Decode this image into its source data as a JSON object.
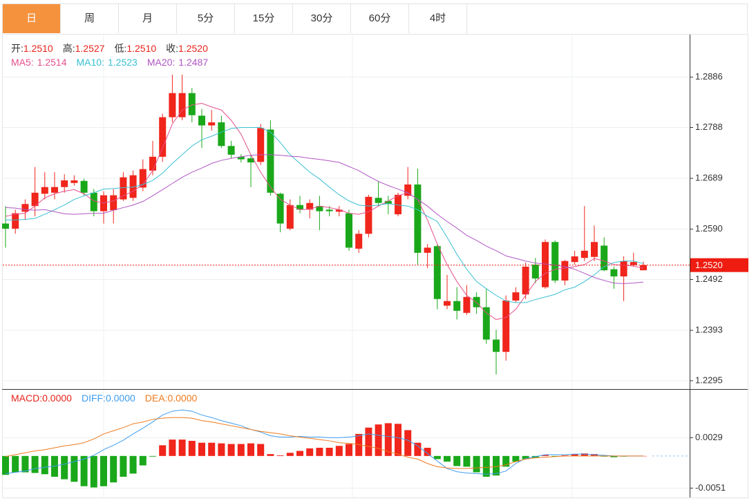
{
  "tabs": [
    "日",
    "周",
    "月",
    "5分",
    "15分",
    "30分",
    "60分",
    "4时"
  ],
  "active_tab": 0,
  "chart_data": [
    {
      "type": "candlestick",
      "info": [
        {
          "label": "开:",
          "value": "1.2510"
        },
        {
          "label": "高:",
          "value": "1.2527"
        },
        {
          "label": "低:",
          "value": "1.2510"
        },
        {
          "label": "收:",
          "value": "1.2520"
        }
      ],
      "info_color": "#e8231b",
      "up_color": "#f0251b",
      "down_color": "#1aa81a",
      "open": [
        1.2601,
        1.2591,
        1.2624,
        1.2635,
        1.2659,
        1.2661,
        1.2672,
        1.268,
        1.2684,
        1.2661,
        1.2625,
        1.2627,
        1.2648,
        1.2651,
        1.2671,
        1.2704,
        1.2731,
        1.2808,
        1.2808,
        1.2855,
        1.2811,
        1.2792,
        1.2798,
        1.2752,
        1.2731,
        1.2728,
        1.2721,
        1.2784,
        1.2659,
        1.2591,
        1.2637,
        1.2628,
        1.2635,
        1.2628,
        1.2624,
        1.2621,
        1.2552,
        1.2581,
        1.2651,
        1.2645,
        1.2619,
        1.2655,
        1.2677,
        1.2544,
        1.2557,
        1.2441,
        1.245,
        1.2427,
        1.2458,
        1.2438,
        1.2375,
        1.2351,
        1.2451,
        1.2463,
        1.2521,
        1.2477,
        1.2565,
        1.249,
        1.2526,
        1.2534,
        1.2536,
        1.2558,
        1.2512,
        1.2498,
        1.252,
        1.251
      ],
      "high": [
        1.2635,
        1.2628,
        1.2648,
        1.2711,
        1.2701,
        1.2701,
        1.2697,
        1.2695,
        1.2688,
        1.2668,
        1.2664,
        1.2668,
        1.2701,
        1.2704,
        1.2726,
        1.2762,
        1.2815,
        1.2891,
        1.2891,
        1.2865,
        1.2824,
        1.2822,
        1.2811,
        1.2762,
        1.2736,
        1.2734,
        1.2795,
        1.2802,
        1.2661,
        1.2648,
        1.2655,
        1.2648,
        1.2655,
        1.2635,
        1.2635,
        1.2628,
        1.2588,
        1.2657,
        1.2684,
        1.2655,
        1.2661,
        1.2711,
        1.2708,
        1.2561,
        1.2561,
        1.2501,
        1.2477,
        1.2481,
        1.2467,
        1.2474,
        1.2394,
        1.2461,
        1.2477,
        1.2525,
        1.2534,
        1.257,
        1.2568,
        1.253,
        1.2548,
        1.2635,
        1.2597,
        1.2574,
        1.2517,
        1.2537,
        1.2544,
        1.2527
      ],
      "low": [
        1.2554,
        1.2581,
        1.2608,
        1.2615,
        1.2648,
        1.2648,
        1.2661,
        1.2675,
        1.2655,
        1.2615,
        1.2601,
        1.2601,
        1.2645,
        1.2645,
        1.2664,
        1.2695,
        1.2721,
        1.2798,
        1.2802,
        1.2798,
        1.2748,
        1.2782,
        1.2748,
        1.2728,
        1.272,
        1.2672,
        1.2715,
        1.2655,
        1.2584,
        1.2588,
        1.2621,
        1.2611,
        1.2588,
        1.2615,
        1.2615,
        1.2548,
        1.2544,
        1.2574,
        1.2635,
        1.2619,
        1.2615,
        1.2648,
        1.2521,
        1.2514,
        1.2434,
        1.2434,
        1.2414,
        1.2423,
        1.2425,
        1.2367,
        1.2307,
        1.2334,
        1.2447,
        1.2454,
        1.2485,
        1.2474,
        1.2485,
        1.2481,
        1.2521,
        1.2528,
        1.2528,
        1.2508,
        1.2474,
        1.245,
        1.2517,
        1.251
      ],
      "close": [
        1.2591,
        1.2621,
        1.2639,
        1.2661,
        1.2672,
        1.2672,
        1.2685,
        1.2685,
        1.2661,
        1.2625,
        1.2656,
        1.2656,
        1.2691,
        1.2695,
        1.2707,
        1.2731,
        1.2808,
        1.2855,
        1.2855,
        1.2812,
        1.2792,
        1.2798,
        1.2752,
        1.2735,
        1.2726,
        1.272,
        1.2787,
        1.2661,
        1.2601,
        1.2637,
        1.2628,
        1.2641,
        1.2625,
        1.2625,
        1.2628,
        1.2554,
        1.2581,
        1.2653,
        1.2641,
        1.2639,
        1.2657,
        1.2677,
        1.2544,
        1.2554,
        1.2454,
        1.245,
        1.2431,
        1.2458,
        1.2438,
        1.2375,
        1.2351,
        1.2451,
        1.2467,
        1.2517,
        1.2494,
        1.2565,
        1.249,
        1.2528,
        1.2537,
        1.2548,
        1.2565,
        1.251,
        1.2498,
        1.2528,
        1.2526,
        1.252
      ],
      "series": [
        {
          "name": "MA5:",
          "last": "1.2514",
          "color": "#e5508c",
          "values": [
            1.2615,
            1.2619,
            1.2621,
            1.2635,
            1.2651,
            1.2659,
            1.2664,
            1.2667,
            1.2659,
            1.2645,
            1.2641,
            1.2645,
            1.2655,
            1.2664,
            1.2677,
            1.2704,
            1.2748,
            1.2795,
            1.2822,
            1.2832,
            1.2835,
            1.2828,
            1.2822,
            1.2802,
            1.2775,
            1.2735,
            1.2701,
            1.2672,
            1.2648,
            1.2637,
            1.2628,
            1.2629,
            1.2635,
            1.2632,
            1.2628,
            1.2621,
            1.2619,
            1.2624,
            1.2635,
            1.2645,
            1.2655,
            1.2661,
            1.2648,
            1.2608,
            1.2561,
            1.2521,
            1.2488,
            1.2461,
            1.2447,
            1.2427,
            1.2414,
            1.2418,
            1.2434,
            1.2461,
            1.2488,
            1.2504,
            1.2512,
            1.2514,
            1.2517,
            1.2521,
            1.2533,
            1.2528,
            1.2521,
            1.252,
            1.2518,
            1.2514
          ]
        },
        {
          "name": "MA10:",
          "last": "1.2523",
          "color": "#37bfd2",
          "values": [
            1.2608,
            1.2608,
            1.2609,
            1.2611,
            1.2619,
            1.2628,
            1.2637,
            1.2648,
            1.2655,
            1.2661,
            1.2668,
            1.2669,
            1.2671,
            1.2672,
            1.2677,
            1.2685,
            1.2699,
            1.2718,
            1.2735,
            1.2752,
            1.2764,
            1.2771,
            1.2779,
            1.2786,
            1.2788,
            1.2788,
            1.2788,
            1.2779,
            1.2759,
            1.2735,
            1.2718,
            1.2701,
            1.2688,
            1.2672,
            1.2657,
            1.2645,
            1.2637,
            1.2635,
            1.2637,
            1.264,
            1.2637,
            1.2635,
            1.2628,
            1.2615,
            1.2605,
            1.2574,
            1.2541,
            1.2512,
            1.2488,
            1.2474,
            1.2461,
            1.245,
            1.2447,
            1.2447,
            1.2453,
            1.2458,
            1.2463,
            1.2472,
            1.2477,
            1.2488,
            1.2501,
            1.2517,
            1.2525,
            1.2528,
            1.2528,
            1.2523
          ]
        },
        {
          "name": "MA20:",
          "last": "1.2487",
          "color": "#b055c4",
          "values": [
            1.2632,
            1.2631,
            1.2628,
            1.2627,
            1.2628,
            1.2624,
            1.262,
            1.2619,
            1.262,
            1.2621,
            1.2621,
            1.2627,
            1.2632,
            1.2637,
            1.2644,
            1.2655,
            1.2667,
            1.2679,
            1.2691,
            1.2701,
            1.2709,
            1.2718,
            1.2724,
            1.2728,
            1.2731,
            1.2734,
            1.2735,
            1.2735,
            1.2734,
            1.2732,
            1.2731,
            1.2728,
            1.2726,
            1.2723,
            1.272,
            1.2712,
            1.2704,
            1.2693,
            1.2683,
            1.2675,
            1.2668,
            1.2661,
            1.2648,
            1.2635,
            1.2619,
            1.2605,
            1.2592,
            1.2578,
            1.2568,
            1.2557,
            1.2548,
            1.2538,
            1.2533,
            1.2528,
            1.2524,
            1.2522,
            1.252,
            1.2517,
            1.2512,
            1.2504,
            1.2496,
            1.249,
            1.2485,
            1.2484,
            1.2485,
            1.2487
          ]
        }
      ],
      "last_price": {
        "value": 1.252,
        "label": "1.2520"
      },
      "last_price_color": "#ee1c11",
      "ylim": [
        1.228,
        1.2969
      ],
      "yticks": [
        1.2886,
        1.2788,
        1.2689,
        {
          "value": 1.259,
          "label": "1.2590"
        },
        1.2492,
        1.2393,
        1.2295
      ],
      "grid": true
    },
    {
      "type": "macd",
      "up_color": "#f0251b",
      "down_color": "#1aa81a",
      "series": [
        {
          "name": "MACD:",
          "last": "0.0000",
          "color": "#e8231b",
          "values": [
            -0.003,
            -0.0026,
            -0.0026,
            -0.0027,
            -0.0029,
            -0.0033,
            -0.0037,
            -0.0041,
            -0.0048,
            -0.005,
            -0.0048,
            -0.0042,
            -0.0033,
            -0.0028,
            -0.0015,
            -0.0001,
            0.0017,
            0.0026,
            0.0026,
            0.0024,
            0.0021,
            0.0021,
            0.002,
            0.0019,
            0.0019,
            0.002,
            0.0019,
            0.0003,
            0.0001,
            0.0005,
            0.0008,
            0.0012,
            0.0013,
            0.0013,
            0.0016,
            0.0019,
            0.0035,
            0.0045,
            0.005,
            0.0052,
            0.0051,
            0.0041,
            0.0021,
            0.0013,
            -0.0005,
            -0.0009,
            -0.0016,
            -0.0017,
            -0.0026,
            -0.0033,
            -0.0031,
            -0.0017,
            -0.0009,
            -0.0005,
            -0.0003,
            0.0002,
            -0.0001,
            0.0001,
            0.0003,
            0.0004,
            0.0003,
            -0.0001,
            -0.0002,
            -0.0001,
            0,
            0
          ]
        },
        {
          "name": "DIFF:",
          "last": "0.0000",
          "color": "#3d9cf0",
          "values": [
            -0.0028,
            -0.0026,
            -0.0024,
            -0.002,
            -0.0018,
            -0.0016,
            -0.0013,
            -0.0009,
            -0.0005,
            0.0001,
            0.001,
            0.0017,
            0.0025,
            0.0035,
            0.0044,
            0.0054,
            0.0065,
            0.0071,
            0.0073,
            0.0071,
            0.0065,
            0.0061,
            0.0056,
            0.0052,
            0.0048,
            0.0042,
            0.0038,
            0.0032,
            0.003,
            0.003,
            0.0031,
            0.003,
            0.003,
            0.0029,
            0.0029,
            0.003,
            0.0032,
            0.0035,
            0.0033,
            0.0031,
            0.0029,
            0.0025,
            0.0016,
            0.0004,
            -0.0008,
            -0.002,
            -0.0025,
            -0.0027,
            -0.0028,
            -0.0029,
            -0.0028,
            -0.0024,
            -0.0012,
            -0.0004,
            -0.0001,
            0.0002,
            0.0002,
            0.0002,
            0.0003,
            0.0003,
            0.0002,
            0.0001,
            0,
            0,
            0,
            0
          ]
        },
        {
          "name": "DEA:",
          "last": "0.0000",
          "color": "#f07a1c",
          "values": [
            -0.0001,
            0.0002,
            0.0005,
            0.0008,
            0.001,
            0.0013,
            0.0016,
            0.0018,
            0.0021,
            0.0027,
            0.0035,
            0.004,
            0.0045,
            0.0051,
            0.0054,
            0.0058,
            0.006,
            0.0061,
            0.0061,
            0.006,
            0.0056,
            0.0054,
            0.0051,
            0.0048,
            0.0045,
            0.0042,
            0.0039,
            0.0037,
            0.0035,
            0.0032,
            0.003,
            0.0028,
            0.0026,
            0.0024,
            0.0021,
            0.002,
            0.0018,
            0.0015,
            0.0012,
            0.0007,
            0.0003,
            -0.0002,
            -0.0005,
            -0.0012,
            -0.0017,
            -0.0019,
            -0.002,
            -0.002,
            -0.0019,
            -0.0018,
            -0.0017,
            -0.0014,
            -0.0009,
            -0.0005,
            -0.0003,
            -0.0002,
            -0.0001,
            0,
            0,
            0,
            0,
            0,
            0,
            0,
            0,
            0
          ]
        }
      ],
      "ylim": [
        -0.0066,
        0.0104
      ],
      "yticks": [
        0.0029,
        -0.0051
      ],
      "grid": true
    }
  ]
}
